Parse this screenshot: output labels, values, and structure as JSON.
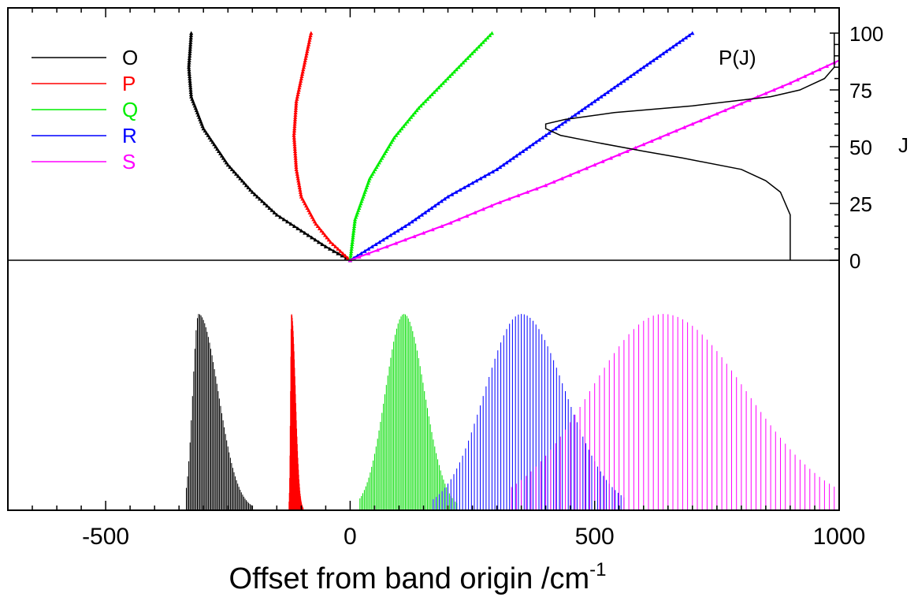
{
  "chart_data": {
    "type": "line",
    "xlabel": "Offset from band origin /cm",
    "xlabel_sup": "-1",
    "x_ticks": [
      -500,
      0,
      500,
      1000
    ],
    "x_tick_labels": [
      "-500",
      "0",
      "500",
      "1000"
    ],
    "xlim": [
      -700,
      1000
    ],
    "upper_panel": {
      "ylabel": "J",
      "ylim": [
        0,
        100
      ],
      "y_ticks": [
        0,
        25,
        50,
        75,
        100
      ],
      "y_tick_labels": [
        "0",
        "25",
        "50",
        "75",
        "100"
      ],
      "series": [
        {
          "name": "O",
          "color": "#000000",
          "x": [
            0,
            -50,
            -100,
            -150,
            -200,
            -250,
            -300,
            -325,
            -330,
            -325
          ],
          "y": [
            0,
            6,
            13,
            20,
            30,
            42,
            58,
            72,
            85,
            100
          ]
        },
        {
          "name": "P",
          "color": "#ff0000",
          "x": [
            0,
            -40,
            -70,
            -100,
            -110,
            -115,
            -110,
            -80
          ],
          "y": [
            0,
            8,
            16,
            28,
            40,
            55,
            70,
            100
          ]
        },
        {
          "name": "Q",
          "color": "#00ee00",
          "x": [
            0,
            10,
            40,
            90,
            140,
            190,
            240,
            290
          ],
          "y": [
            0,
            18,
            36,
            54,
            67,
            78,
            89,
            100
          ]
        },
        {
          "name": "R",
          "color": "#0000ff",
          "x": [
            0,
            60,
            120,
            200,
            300,
            400,
            500,
            600,
            700
          ],
          "y": [
            0,
            8,
            16,
            28,
            40,
            55,
            70,
            85,
            100
          ]
        },
        {
          "name": "S",
          "color": "#ff00ff",
          "x": [
            0,
            100,
            200,
            300,
            400,
            500,
            600,
            700,
            800,
            900,
            1000
          ],
          "y": [
            0,
            8,
            16,
            25,
            33,
            42,
            51,
            60,
            69,
            78,
            88
          ]
        }
      ],
      "population_curve": {
        "label": "P(J)",
        "J": [
          0,
          20,
          30,
          35,
          40,
          45,
          48,
          52,
          55,
          58,
          60,
          62,
          65,
          68,
          72,
          75,
          80,
          85,
          90,
          95,
          100
        ],
        "x": [
          900,
          900,
          880,
          850,
          800,
          680,
          600,
          500,
          430,
          400,
          400,
          440,
          540,
          700,
          860,
          920,
          970,
          990,
          990,
          990,
          990
        ]
      },
      "legend": [
        "O",
        "P",
        "Q",
        "R",
        "S"
      ],
      "legend_position": "top-left"
    },
    "lower_panel": {
      "type": "stick-spectrum",
      "envelopes": [
        {
          "branch": "O",
          "color": "#000000",
          "start": -335,
          "end": -200,
          "peak_x": -310,
          "peak_h": 0.98,
          "spacing": 2.5,
          "sigma_left": 12,
          "sigma_right": 40
        },
        {
          "branch": "P",
          "color": "#ff0000",
          "start": -125,
          "end": -80,
          "peak_x": -120,
          "peak_h": 0.98,
          "spacing": 0.6,
          "sigma_left": 2,
          "sigma_right": 8
        },
        {
          "branch": "Q",
          "color": "#00dd00",
          "start": 20,
          "end": 220,
          "peak_x": 110,
          "peak_h": 0.98,
          "spacing": 3,
          "sigma_left": 38,
          "sigma_right": 42
        },
        {
          "branch": "R",
          "color": "#0000ff",
          "start": 170,
          "end": 560,
          "peak_x": 350,
          "peak_h": 0.98,
          "spacing": 6,
          "sigma_left": 75,
          "sigma_right": 90
        },
        {
          "branch": "S",
          "color": "#ff00ff",
          "start": 330,
          "end": 1000,
          "peak_x": 640,
          "peak_h": 0.98,
          "spacing": 10,
          "sigma_left": 150,
          "sigma_right": 170
        }
      ]
    },
    "grid": false,
    "legend_colors": {
      "O": "#000000",
      "P": "#ff0000",
      "Q": "#00ee00",
      "R": "#0000ff",
      "S": "#ff00ff"
    }
  }
}
